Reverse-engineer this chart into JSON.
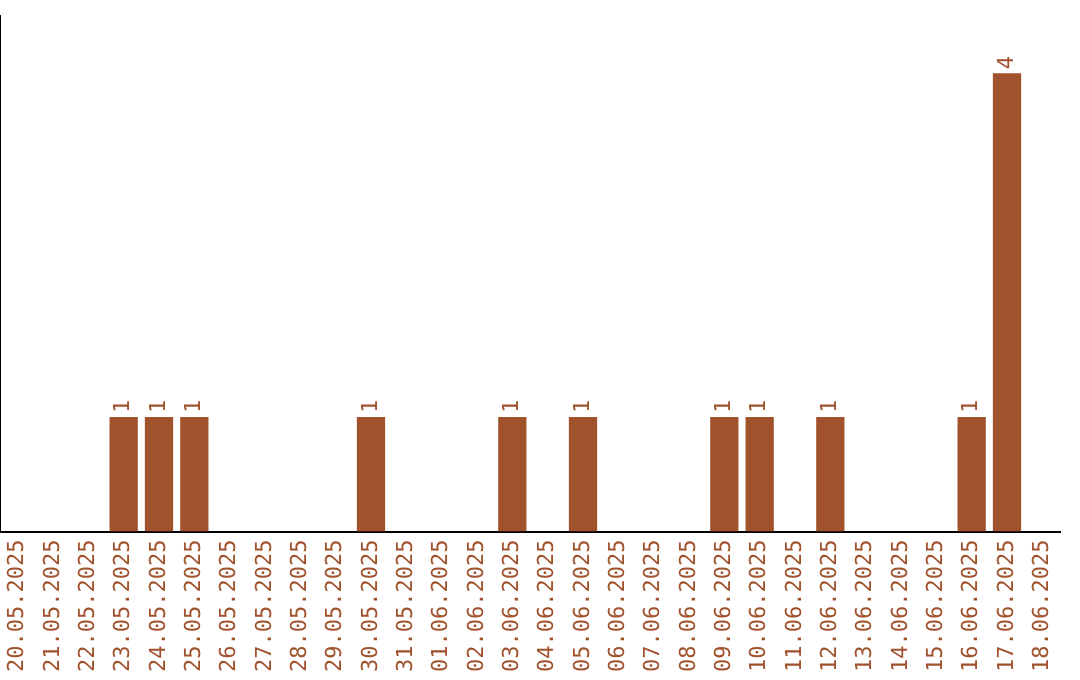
{
  "chart_data": {
    "type": "bar",
    "categories": [
      "20.05.2025",
      "21.05.2025",
      "22.05.2025",
      "23.05.2025",
      "24.05.2025",
      "25.05.2025",
      "26.05.2025",
      "27.05.2025",
      "28.05.2025",
      "29.05.2025",
      "30.05.2025",
      "31.05.2025",
      "01.06.2025",
      "02.06.2025",
      "03.06.2025",
      "04.06.2025",
      "05.06.2025",
      "06.06.2025",
      "07.06.2025",
      "08.06.2025",
      "09.06.2025",
      "10.06.2025",
      "11.06.2025",
      "12.06.2025",
      "13.06.2025",
      "14.06.2025",
      "15.06.2025",
      "16.06.2025",
      "17.06.2025",
      "18.06.2025"
    ],
    "values": [
      0,
      0,
      0,
      1,
      1,
      1,
      0,
      0,
      0,
      0,
      1,
      0,
      0,
      0,
      1,
      0,
      1,
      0,
      0,
      0,
      1,
      1,
      0,
      1,
      0,
      0,
      0,
      1,
      4,
      0
    ],
    "value_labels": [
      null,
      null,
      null,
      "1",
      "1",
      "1",
      null,
      null,
      null,
      null,
      "1",
      null,
      null,
      null,
      "1",
      null,
      "1",
      null,
      null,
      null,
      "1",
      "1",
      null,
      "1",
      null,
      null,
      null,
      "1",
      "4",
      null
    ],
    "color": "#a0522d",
    "grid": false,
    "legend": false
  }
}
